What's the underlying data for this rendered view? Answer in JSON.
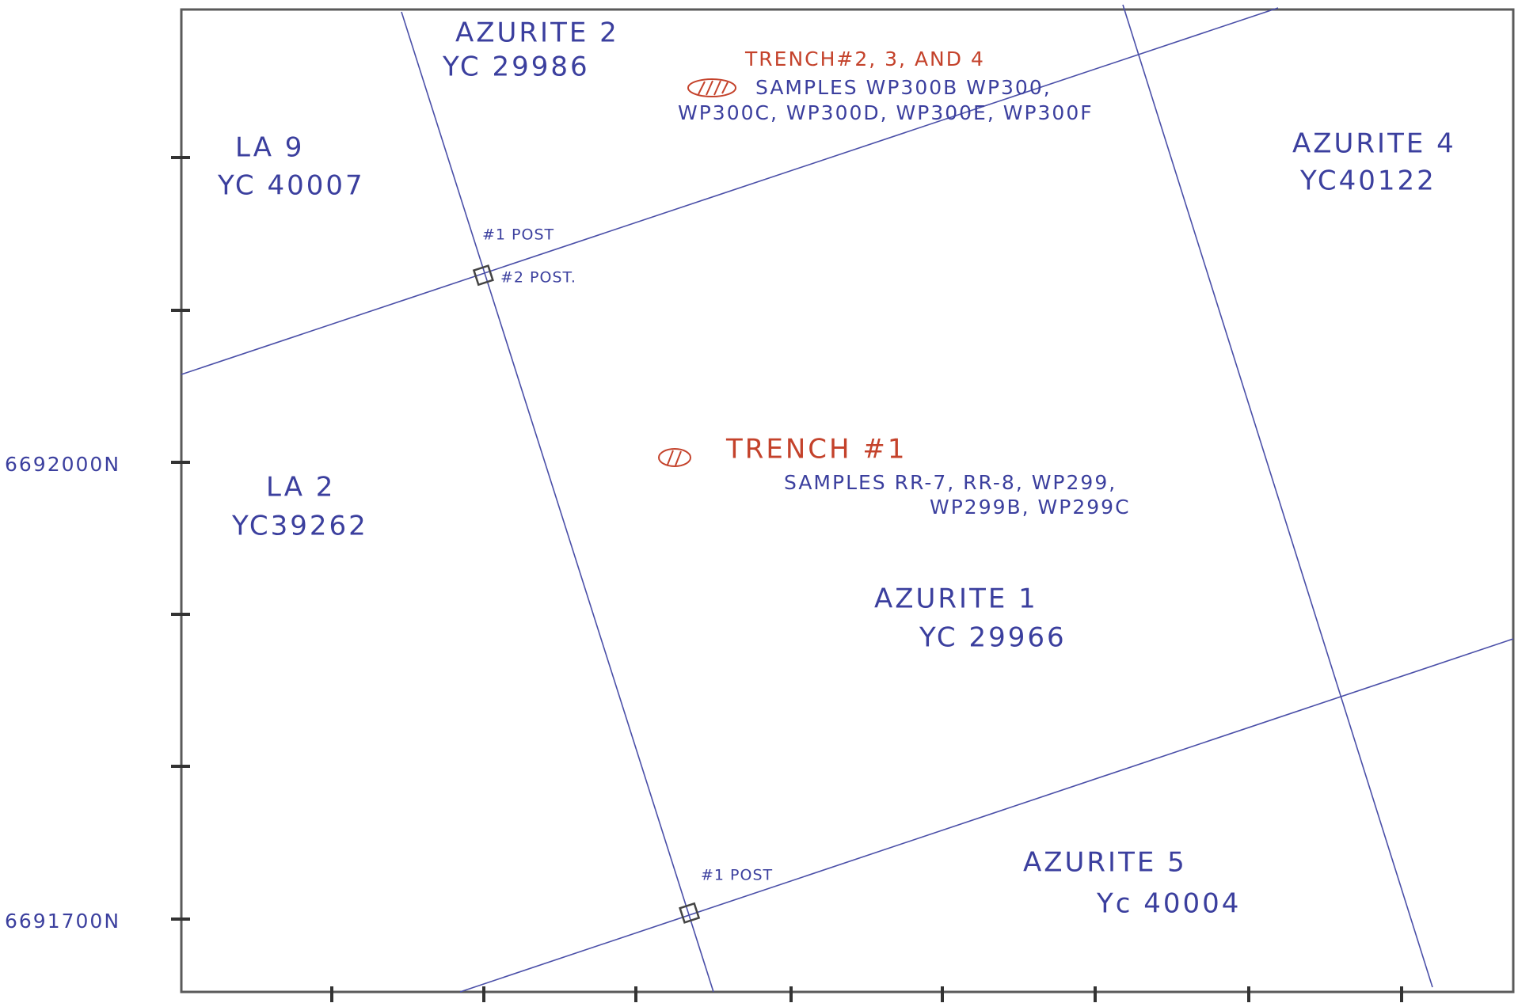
{
  "claims": [
    {
      "name": "AZURITE 2",
      "tenure": "YC 29986"
    },
    {
      "name": "LA 9",
      "tenure": "YC 40007"
    },
    {
      "name": "AZURITE 4",
      "tenure": "YC40122"
    },
    {
      "name": "LA 2",
      "tenure": "YC39262"
    },
    {
      "name": "AZURITE 1",
      "tenure": "YC 29966"
    },
    {
      "name": "AZURITE 5",
      "tenure": "Yc 40004"
    }
  ],
  "trenches": [
    {
      "title": "TRENCH#2, 3, AND 4",
      "samples": [
        "SAMPLES WP300B WP300,",
        "WP300C, WP300D, WP300E, WP300F"
      ]
    },
    {
      "title": "TRENCH #1",
      "samples": [
        "SAMPLES RR-7, RR-8, WP299,",
        "WP299B, WP299C"
      ]
    }
  ],
  "posts": [
    "#1 POST",
    "#2 POST.",
    "#1 POST"
  ],
  "northings": [
    "6692000N",
    "6691700N"
  ]
}
